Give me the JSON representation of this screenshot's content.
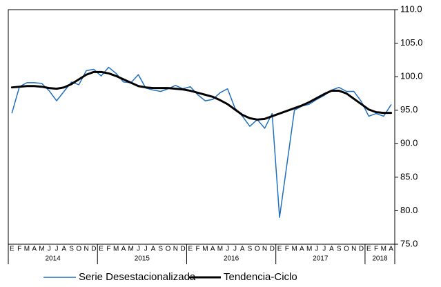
{
  "chart_data": {
    "type": "line",
    "categories": [
      "E",
      "F",
      "M",
      "A",
      "M",
      "J",
      "J",
      "A",
      "S",
      "O",
      "N",
      "D",
      "E",
      "F",
      "M",
      "A",
      "M",
      "J",
      "J",
      "A",
      "S",
      "O",
      "N",
      "D",
      "E",
      "F",
      "M",
      "A",
      "M",
      "J",
      "J",
      "A",
      "S",
      "O",
      "N",
      "D",
      "E",
      "F",
      "M",
      "A",
      "M",
      "J",
      "J",
      "A",
      "S",
      "O",
      "N",
      "D",
      "E",
      "F",
      "M",
      "A"
    ],
    "years": [
      "2014",
      "2015",
      "2016",
      "2017",
      "2018"
    ],
    "series": [
      {
        "name": "Serie Desestacionalizada",
        "color": "#1f6fc0",
        "width": 1.5,
        "values": [
          94.6,
          98.5,
          99.1,
          99.1,
          99.0,
          97.9,
          96.4,
          97.8,
          99.2,
          98.8,
          100.9,
          101.1,
          100.1,
          101.4,
          100.5,
          99.2,
          99.1,
          100.3,
          98.3,
          98.0,
          97.8,
          98.2,
          98.7,
          98.2,
          98.5,
          97.3,
          96.4,
          96.6,
          97.6,
          98.2,
          95.3,
          94.1,
          92.6,
          93.6,
          92.3,
          94.5,
          79.0,
          87.0,
          95.0,
          95.6,
          95.9,
          96.6,
          97.2,
          98.0,
          98.4,
          97.8,
          97.8,
          96.3,
          94.1,
          94.5,
          94.1,
          95.8
        ]
      },
      {
        "name": "Tendencia-Ciclo",
        "color": "#000000",
        "width": 3,
        "values": [
          98.4,
          98.5,
          98.6,
          98.6,
          98.5,
          98.3,
          98.2,
          98.4,
          98.9,
          99.6,
          100.3,
          100.7,
          100.7,
          100.5,
          100.1,
          99.6,
          99.1,
          98.6,
          98.4,
          98.3,
          98.3,
          98.3,
          98.2,
          98.1,
          97.9,
          97.6,
          97.3,
          97.0,
          96.5,
          95.9,
          95.1,
          94.3,
          93.8,
          93.6,
          93.7,
          94.1,
          94.5,
          94.9,
          95.3,
          95.7,
          96.2,
          96.8,
          97.4,
          97.9,
          97.9,
          97.5,
          96.7,
          95.9,
          95.1,
          94.7,
          94.6,
          94.6
        ]
      }
    ],
    "ylim": [
      75,
      110
    ],
    "yticks": [
      {
        "value": 75,
        "label": "75.0"
      },
      {
        "value": 80,
        "label": "80.0"
      },
      {
        "value": 85,
        "label": "85.0"
      },
      {
        "value": 90,
        "label": "90.0"
      },
      {
        "value": 95,
        "label": "95.0"
      },
      {
        "value": 100,
        "label": "100.0"
      },
      {
        "value": 105,
        "label": "105.0"
      },
      {
        "value": 110,
        "label": "110.0"
      }
    ],
    "grid": false,
    "legend": "bottom"
  }
}
